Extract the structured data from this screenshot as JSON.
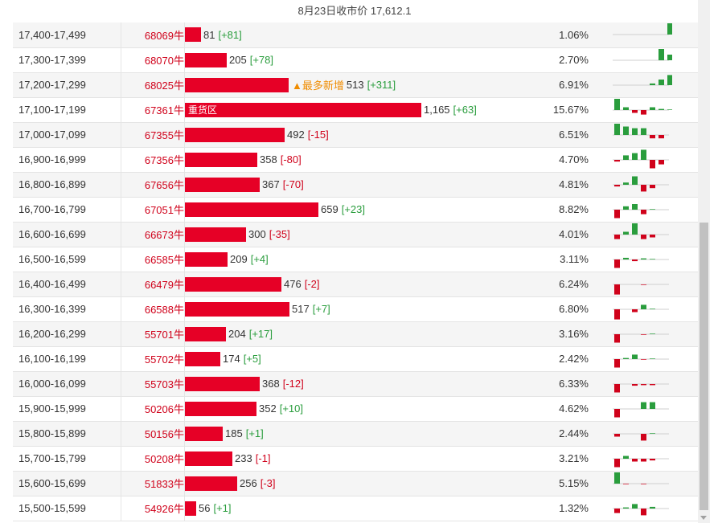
{
  "header": {
    "title": "8月23日收市价 17,612.1"
  },
  "annotations": {
    "most_added": "▲最多新增",
    "heavy_zone": "重货区"
  },
  "colors": {
    "bar": "#e60026",
    "positive": "#2a9d3d",
    "negative": "#d0021b",
    "note": "#f08c00"
  },
  "rows": [
    {
      "range": "17,400-17,499",
      "code": "68069牛",
      "count": "81",
      "change": "[+81]",
      "pct": "1.06%",
      "spark": [
        0,
        0,
        0,
        0,
        0,
        0,
        2
      ]
    },
    {
      "range": "17,300-17,399",
      "code": "68070牛",
      "count": "205",
      "change": "[+78]",
      "pct": "2.70%",
      "spark": [
        0,
        0,
        0,
        0,
        0,
        2,
        1
      ]
    },
    {
      "range": "17,200-17,299",
      "code": "68025牛",
      "count": "513",
      "change": "[+311]",
      "pct": "6.91%",
      "spark": [
        0,
        0,
        0,
        0,
        0.3,
        1,
        1.8
      ]
    },
    {
      "range": "17,100-17,199",
      "code": "67361牛",
      "count": "1,165",
      "change": "[+63]",
      "pct": "15.67%",
      "spark": [
        2,
        0.5,
        -0.5,
        -0.8,
        0.5,
        0.2,
        0.1
      ]
    },
    {
      "range": "17,000-17,099",
      "code": "67355牛",
      "count": "492",
      "change": "[-15]",
      "pct": "6.51%",
      "spark": [
        2,
        1.5,
        1.2,
        1.2,
        -0.6,
        -0.6,
        0
      ]
    },
    {
      "range": "16,900-16,999",
      "code": "67356牛",
      "count": "358",
      "change": "[-80]",
      "pct": "4.70%",
      "spark": [
        -0.3,
        0.8,
        1.2,
        1.8,
        -1.5,
        -0.8,
        0
      ]
    },
    {
      "range": "16,800-16,899",
      "code": "67656牛",
      "count": "367",
      "change": "[-70]",
      "pct": "4.81%",
      "spark": [
        -0.3,
        0.4,
        1.5,
        -1.2,
        -0.6,
        0,
        0
      ]
    },
    {
      "range": "16,700-16,799",
      "code": "67051牛",
      "count": "659",
      "change": "[+23]",
      "pct": "8.82%",
      "spark": [
        -1.5,
        0.6,
        1,
        -0.8,
        0.1,
        0,
        0
      ]
    },
    {
      "range": "16,600-16,699",
      "code": "66673牛",
      "count": "300",
      "change": "[-35]",
      "pct": "4.01%",
      "spark": [
        -0.8,
        0.5,
        2,
        -0.8,
        -0.5,
        0,
        0
      ]
    },
    {
      "range": "16,500-16,599",
      "code": "66585牛",
      "count": "209",
      "change": "[+4]",
      "pct": "3.11%",
      "spark": [
        -1.5,
        0.3,
        -0.3,
        0.2,
        0.1,
        0,
        0
      ]
    },
    {
      "range": "16,400-16,499",
      "code": "66479牛",
      "count": "476",
      "change": "[-2]",
      "pct": "6.24%",
      "spark": [
        -1.8,
        0,
        0,
        -0.1,
        0,
        0,
        0
      ]
    },
    {
      "range": "16,300-16,399",
      "code": "66588牛",
      "count": "517",
      "change": "[+7]",
      "pct": "6.80%",
      "spark": [
        -1.8,
        0,
        -0.5,
        0.8,
        0.1,
        0,
        0
      ]
    },
    {
      "range": "16,200-16,299",
      "code": "55701牛",
      "count": "204",
      "change": "[+17]",
      "pct": "3.16%",
      "spark": [
        -1.5,
        0,
        0,
        -0.1,
        0.1,
        0,
        0
      ]
    },
    {
      "range": "16,100-16,199",
      "code": "55702牛",
      "count": "174",
      "change": "[+5]",
      "pct": "2.42%",
      "spark": [
        -1.5,
        0.2,
        0.8,
        -0.1,
        0.1,
        0,
        0
      ]
    },
    {
      "range": "16,000-16,099",
      "code": "55703牛",
      "count": "368",
      "change": "[-12]",
      "pct": "6.33%",
      "spark": [
        -1.5,
        0,
        -0.3,
        -0.2,
        -0.2,
        0,
        0
      ]
    },
    {
      "range": "15,900-15,999",
      "code": "50206牛",
      "count": "352",
      "change": "[+10]",
      "pct": "4.62%",
      "spark": [
        -1.5,
        0,
        0,
        1.2,
        1.2,
        0,
        0
      ]
    },
    {
      "range": "15,800-15,899",
      "code": "50156牛",
      "count": "185",
      "change": "[+1]",
      "pct": "2.44%",
      "spark": [
        -0.5,
        0,
        0,
        -1.2,
        0.1,
        0,
        0
      ]
    },
    {
      "range": "15,700-15,799",
      "code": "50208牛",
      "count": "233",
      "change": "[-1]",
      "pct": "3.21%",
      "spark": [
        -1.5,
        0.5,
        -0.5,
        -0.5,
        -0.3,
        0,
        0
      ]
    },
    {
      "range": "15,600-15,699",
      "code": "51833牛",
      "count": "256",
      "change": "[-3]",
      "pct": "5.15%",
      "spark": [
        2,
        -0.1,
        0,
        -0.1,
        0,
        0,
        0
      ]
    },
    {
      "range": "15,500-15,599",
      "code": "54926牛",
      "count": "56",
      "change": "[+1]",
      "pct": "1.32%",
      "spark": [
        -0.8,
        0.2,
        0.8,
        -1.2,
        0.3,
        0,
        0
      ]
    }
  ]
}
